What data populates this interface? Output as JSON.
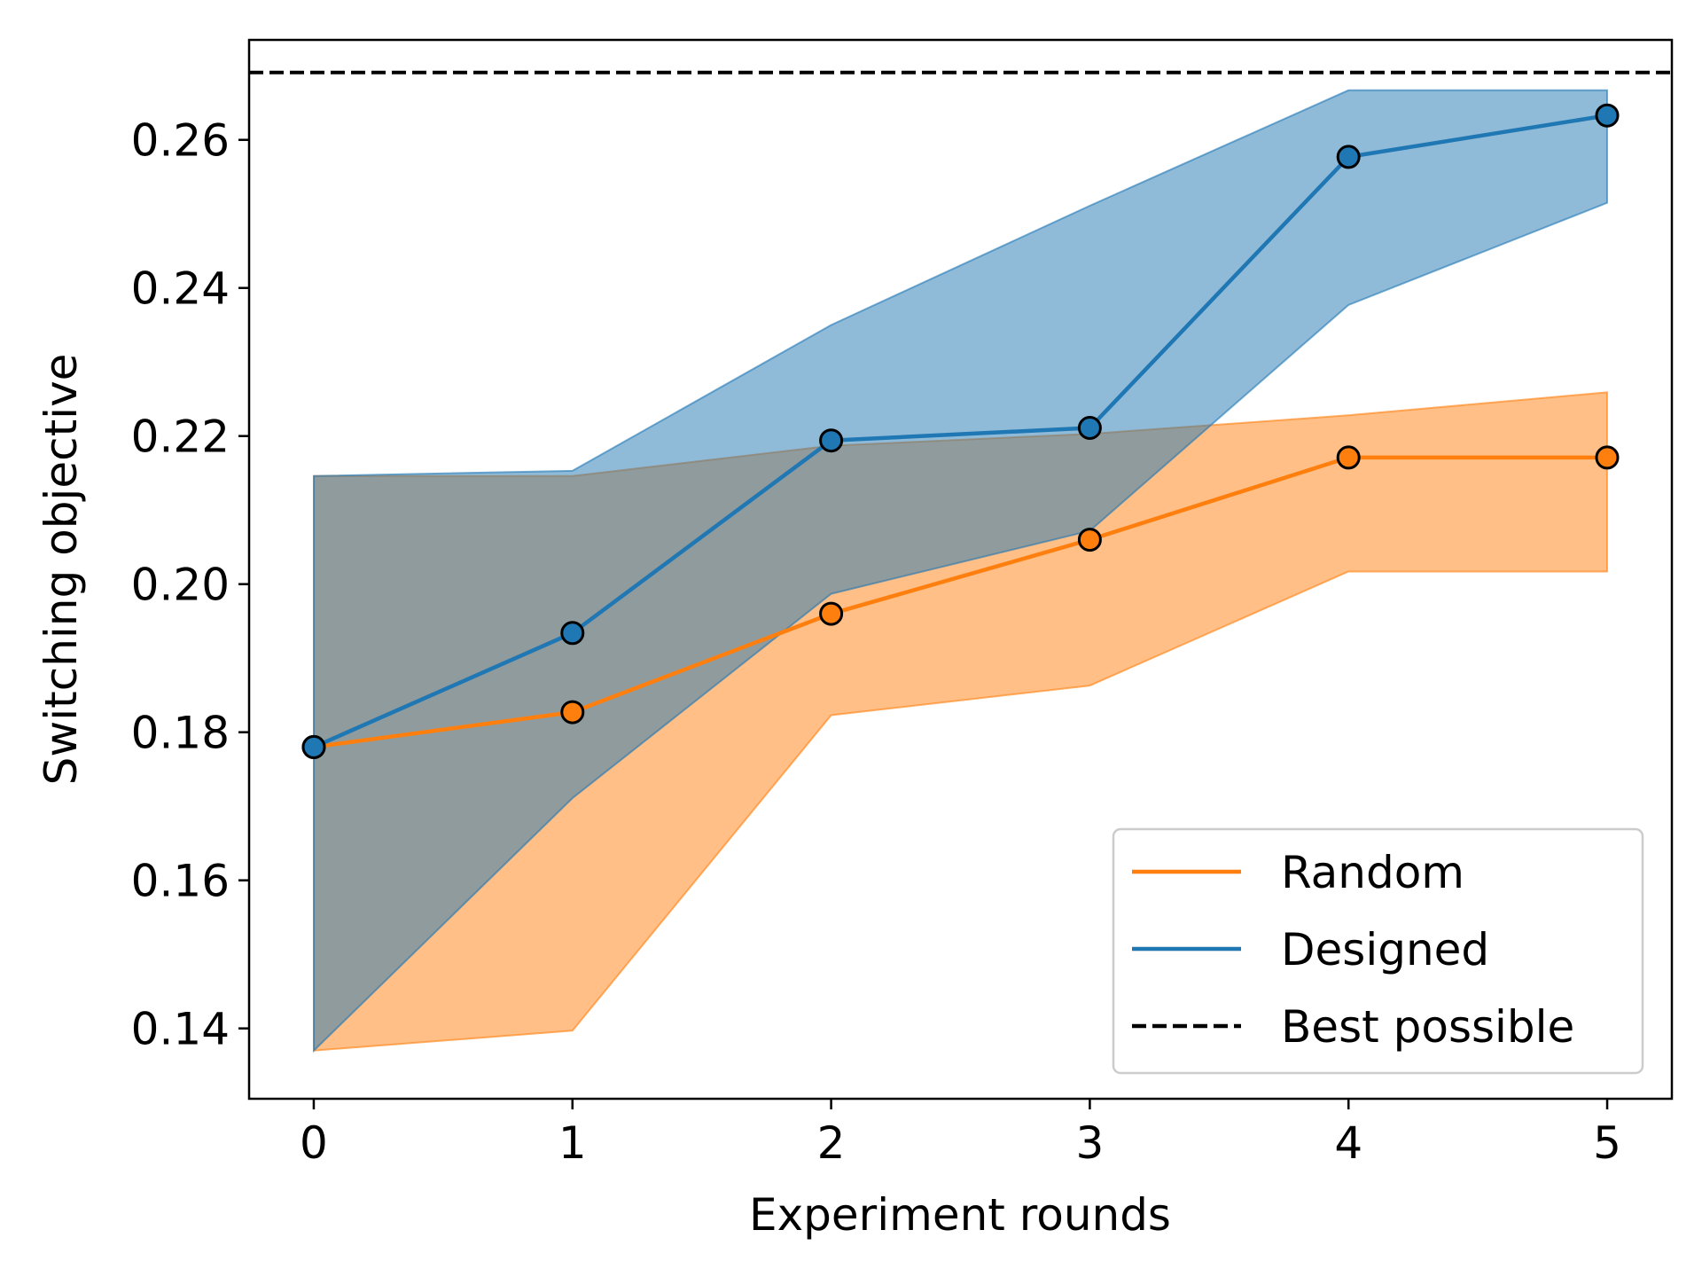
{
  "chart_data": {
    "type": "line",
    "xlabel": "Experiment rounds",
    "ylabel": "Switching objective",
    "x": [
      0,
      1,
      2,
      3,
      4,
      5
    ],
    "xlim": [
      -0.25,
      5.25
    ],
    "ylim": [
      0.1305,
      0.2735
    ],
    "xticks": [
      "0",
      "1",
      "2",
      "3",
      "4",
      "5"
    ],
    "yticks": [
      "0.14",
      "0.16",
      "0.18",
      "0.20",
      "0.22",
      "0.24",
      "0.26"
    ],
    "grid": false,
    "legend_position": "lower-right",
    "series": [
      {
        "name": "Random",
        "color": "#ff7f0e",
        "values": [
          0.178,
          0.1827,
          0.196,
          0.206,
          0.2171,
          0.2171
        ],
        "band_lower": [
          0.137,
          0.1397,
          0.1823,
          0.1863,
          0.2017,
          0.2017
        ],
        "band_upper": [
          0.2146,
          0.2146,
          0.2187,
          0.2203,
          0.2228,
          0.2259
        ]
      },
      {
        "name": "Designed",
        "color": "#1f77b4",
        "values": [
          0.178,
          0.1934,
          0.2194,
          0.2211,
          0.2577,
          0.2633
        ],
        "band_lower": [
          0.137,
          0.1711,
          0.1987,
          0.2072,
          0.2377,
          0.2515
        ],
        "band_upper": [
          0.2146,
          0.2153,
          0.235,
          0.2511,
          0.2667,
          0.2667
        ]
      }
    ],
    "reference_lines": [
      {
        "name": "Best possible",
        "y": 0.2691,
        "style": "dashed",
        "color": "#000000"
      }
    ]
  }
}
